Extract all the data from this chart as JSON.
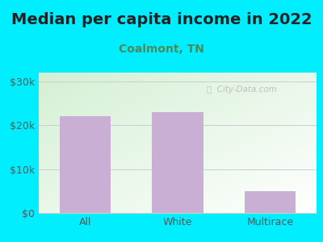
{
  "title": "Median per capita income in 2022",
  "subtitle": "Coalmont, TN",
  "categories": [
    "All",
    "White",
    "Multirace"
  ],
  "values": [
    22000,
    23000,
    5000
  ],
  "bar_color": "#c9afd4",
  "title_fontsize": 14,
  "subtitle_fontsize": 10,
  "subtitle_color": "#4a8a5a",
  "title_color": "#222222",
  "background_outer": "#00eeff",
  "ylim": [
    0,
    32000
  ],
  "yticks": [
    0,
    10000,
    20000,
    30000
  ],
  "ytick_labels": [
    "$0",
    "$10k",
    "$20k",
    "$30k"
  ],
  "tick_color": "#555555",
  "grid_color": "#cccccc",
  "watermark": " City-Data.com",
  "watermark_color": "#aaaaaa"
}
